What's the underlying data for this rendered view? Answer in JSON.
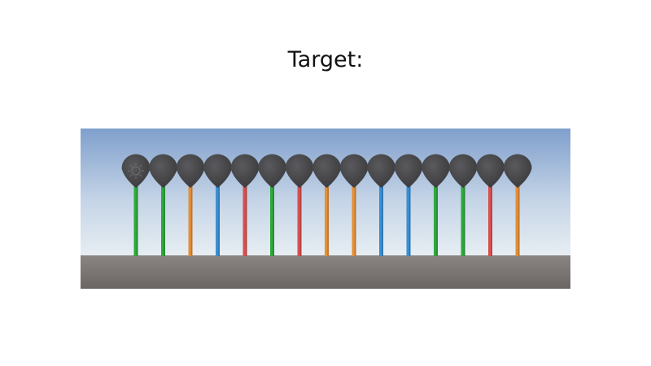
{
  "title": "Target:",
  "scene": {
    "sky_top": "#7f9fcc",
    "sky_mid": "#c3d3e6",
    "horizon": "#e7eef3",
    "ground": "#6b6664",
    "ground_far": "#8a8482",
    "bulb_color": "#3a3a3c",
    "bulb_highlight": "#5a5a5e",
    "light_icon": "sun-gizmo-icon",
    "sticks": [
      {
        "color": "#2ea93b"
      },
      {
        "color": "#2ea93b"
      },
      {
        "color": "#e58f36"
      },
      {
        "color": "#3a8fd4"
      },
      {
        "color": "#d9504e"
      },
      {
        "color": "#2ea93b"
      },
      {
        "color": "#d9504e"
      },
      {
        "color": "#e58f36"
      },
      {
        "color": "#e58f36"
      },
      {
        "color": "#3a8fd4"
      },
      {
        "color": "#3a8fd4"
      },
      {
        "color": "#2ea93b"
      },
      {
        "color": "#2ea93b"
      },
      {
        "color": "#d9504e"
      },
      {
        "color": "#e58f36"
      }
    ]
  }
}
